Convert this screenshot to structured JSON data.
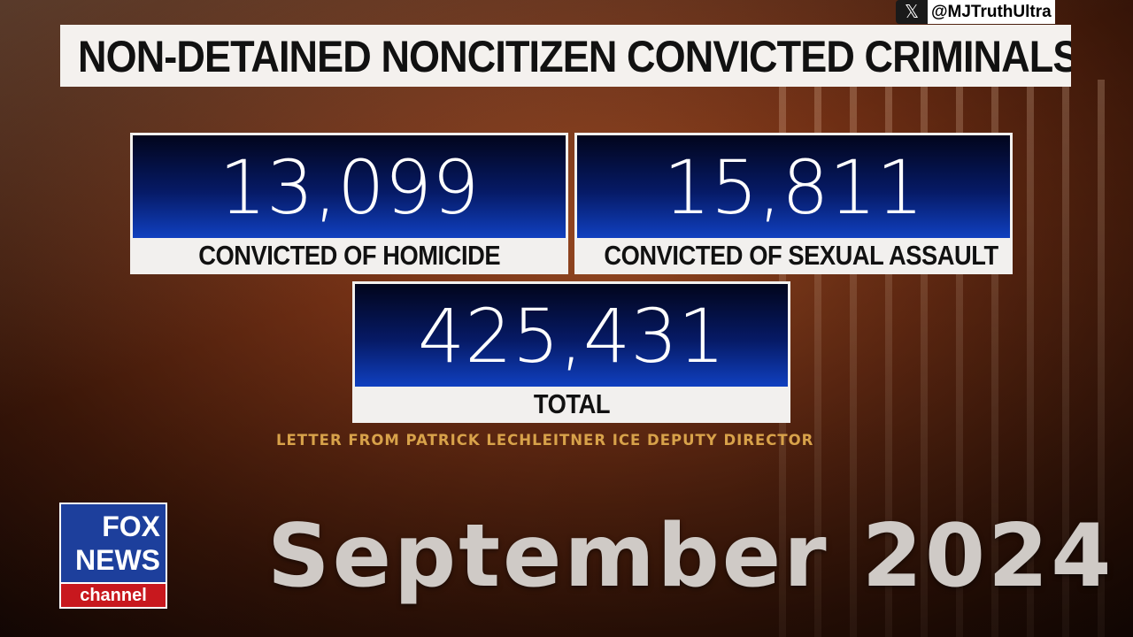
{
  "title": "NON-DETAINED NONCITIZEN CONVICTED CRIMINALS",
  "watermark": {
    "icon": "x-logo-icon",
    "handle": "@MJTruthUltra"
  },
  "stats": [
    {
      "value": "13,099",
      "label": "CONVICTED OF HOMICIDE"
    },
    {
      "value": "15,811",
      "label": "CONVICTED OF SEXUAL ASSAULT"
    },
    {
      "value": "425,431",
      "label": "TOTAL"
    }
  ],
  "source": "LETTER FROM PATRICK LECHLEITNER ICE DEPUTY DIRECTOR",
  "logo": {
    "line1": "FOX",
    "line2": "NEWS",
    "line3": "channel",
    "colors": {
      "blue": "#1d3f9c",
      "red": "#c8181e"
    }
  },
  "date_overlay": "September 2024",
  "colors": {
    "number_panel": "#061a66",
    "source_text": "#d8a24a"
  }
}
